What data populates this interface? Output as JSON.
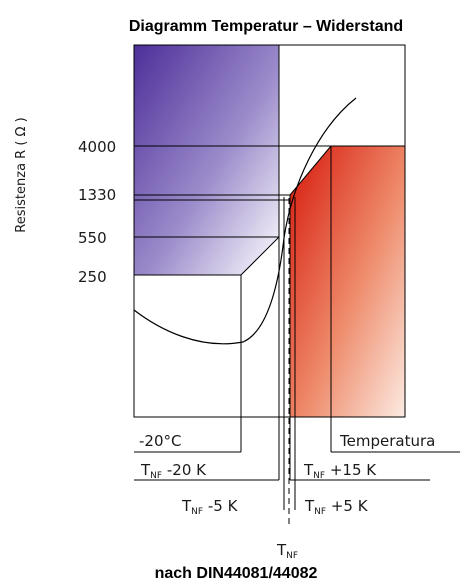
{
  "title": "Diagramm Temperatur – Widerstand",
  "footer": "nach DIN44081/44082",
  "y_axis": {
    "label": "Resistenza R ( Ω )",
    "ticks": [
      "4000",
      "1330",
      "550",
      "250"
    ]
  },
  "labels": {
    "minus20": "-20°C",
    "temperatura": "Temperatura",
    "tnf_main": "T",
    "tnf_sub": "NF",
    "tnf_m20": " -20 K",
    "tnf_p15": " +15 K",
    "tnf_m5": " -5 K",
    "tnf_p5": " +5 K"
  },
  "colors": {
    "blue_dark": "#4d2f99",
    "blue_light": "#ffffff",
    "red_dark": "#d6180c",
    "red_light": "#fcebe2",
    "line": "#000000"
  }
}
